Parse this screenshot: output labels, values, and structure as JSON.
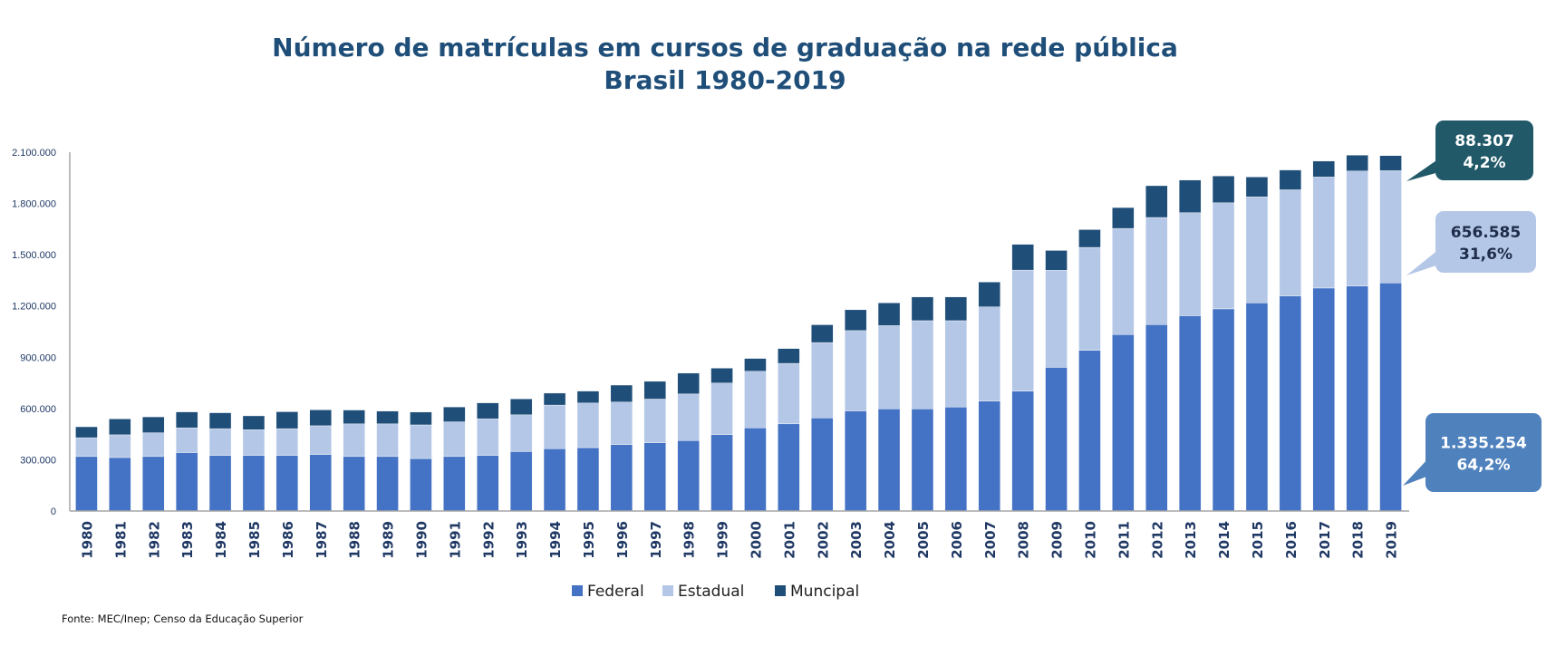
{
  "chart_data": {
    "type": "bar",
    "stacked": true,
    "title": "Número de matrículas em cursos de graduação na rede pública",
    "subtitle": "Brasil 1980-2019",
    "xlabel": "",
    "ylabel": "",
    "ylim": [
      0,
      2100000
    ],
    "yticks": [
      0,
      300000,
      600000,
      900000,
      1200000,
      1500000,
      1800000,
      2100000
    ],
    "ytick_labels": [
      "0",
      "300.000",
      "600.000",
      "900.000",
      "1.200.000",
      "1.500.000",
      "1.800.000",
      "2.100.000"
    ],
    "grid": false,
    "legend_position": "bottom",
    "categories": [
      "1980",
      "1981",
      "1982",
      "1983",
      "1984",
      "1985",
      "1986",
      "1987",
      "1988",
      "1989",
      "1990",
      "1991",
      "1992",
      "1993",
      "1994",
      "1995",
      "1996",
      "1997",
      "1998",
      "1999",
      "2000",
      "2001",
      "2002",
      "2003",
      "2004",
      "2005",
      "2006",
      "2007",
      "2008",
      "2009",
      "2010",
      "2011",
      "2012",
      "2013",
      "2014",
      "2015",
      "2016",
      "2017",
      "2018",
      "2019"
    ],
    "series": [
      {
        "name": "Federal",
        "color": "#4472C4",
        "values": [
          319000,
          313000,
          319000,
          342000,
          325000,
          325000,
          325000,
          331000,
          319000,
          319000,
          307000,
          319000,
          325000,
          348000,
          365000,
          371000,
          389000,
          400000,
          412000,
          447000,
          487000,
          510000,
          545000,
          586000,
          598000,
          598000,
          609000,
          644000,
          702000,
          841000,
          940000,
          1033000,
          1091000,
          1143000,
          1183000,
          1218000,
          1259000,
          1305000,
          1317000,
          1335254
        ]
      },
      {
        "name": "Estadual",
        "color": "#B4C7E7",
        "values": [
          110000,
          133000,
          139000,
          145000,
          157000,
          151000,
          157000,
          168000,
          191000,
          191000,
          197000,
          203000,
          215000,
          215000,
          255000,
          261000,
          249000,
          255000,
          273000,
          302000,
          331000,
          354000,
          441000,
          470000,
          487000,
          516000,
          505000,
          551000,
          708000,
          568000,
          603000,
          621000,
          627000,
          603000,
          621000,
          621000,
          621000,
          650000,
          673000,
          656585
        ]
      },
      {
        "name": "Muncipal",
        "color": "#1F4E79",
        "values": [
          64000,
          93000,
          93000,
          93000,
          93000,
          81000,
          99000,
          93000,
          81000,
          75000,
          75000,
          87000,
          93000,
          93000,
          70000,
          70000,
          99000,
          104000,
          122000,
          87000,
          75000,
          87000,
          104000,
          122000,
          133000,
          139000,
          139000,
          145000,
          151000,
          116000,
          104000,
          122000,
          186000,
          191000,
          157000,
          116000,
          116000,
          93000,
          93000,
          88307
        ]
      }
    ],
    "annotations": [
      {
        "series": "Muncipal",
        "value": "88.307",
        "share": "4,2%",
        "color": "#215968",
        "text_color": "#FFFFFF"
      },
      {
        "series": "Estadual",
        "value": "656.585",
        "share": "31,6%",
        "color": "#B4C7E7",
        "text_color": "#1F2D4A"
      },
      {
        "series": "Federal",
        "value": "1.335.254",
        "share": "64,2%",
        "color": "#4F81BD",
        "text_color": "#FFFFFF"
      }
    ]
  },
  "source": "Fonte: MEC/Inep; Censo da Educação Superior"
}
